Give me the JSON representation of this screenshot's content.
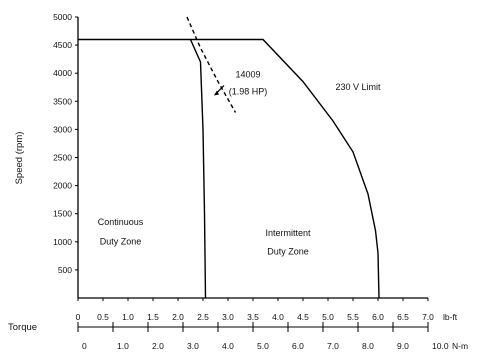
{
  "chart_data": {
    "type": "line",
    "title": "",
    "ylabel": "Speed (rpm)",
    "xlabel": "Torque",
    "ylim": [
      0,
      5000
    ],
    "y_ticks": [
      "5000",
      "4500",
      "4000",
      "3500",
      "3000",
      "2500",
      "2000",
      "1500",
      "1000",
      "500"
    ],
    "x_axis_lbft": {
      "unit": "lb-ft",
      "xlim": [
        0,
        7.0
      ],
      "ticks": [
        "0",
        "0.5",
        "1.0",
        "1.5",
        "2.0",
        "2.5",
        "3.0",
        "3.5",
        "4.0",
        "4.5",
        "5.0",
        "5.5",
        "6.0",
        "6.5",
        "7.0"
      ]
    },
    "x_axis_nm": {
      "unit": "N-m",
      "xlim": [
        0,
        10.0
      ],
      "ticks": [
        "0",
        "1.0",
        "2.0",
        "3.0",
        "4.0",
        "5.0",
        "6.0",
        "7.0",
        "8.0",
        "9.0",
        "10.0"
      ]
    },
    "series": [
      {
        "name": "230 V Limit",
        "style": "solid",
        "points": [
          [
            0,
            4600
          ],
          [
            3.7,
            4600
          ],
          [
            4.5,
            3850
          ],
          [
            5.1,
            3150
          ],
          [
            5.5,
            2600
          ],
          [
            5.8,
            1850
          ],
          [
            5.95,
            1200
          ],
          [
            6.0,
            800
          ],
          [
            6.02,
            0
          ]
        ]
      },
      {
        "name": "",
        "style": "solid",
        "points": [
          [
            2.25,
            4600
          ],
          [
            2.45,
            4200
          ],
          [
            2.5,
            3000
          ],
          [
            2.53,
            1500
          ],
          [
            2.55,
            0
          ]
        ]
      },
      {
        "name": "",
        "style": "dashed",
        "points": [
          [
            2.18,
            5000
          ],
          [
            2.45,
            4450
          ],
          [
            2.8,
            3850
          ],
          [
            3.15,
            3300
          ]
        ]
      }
    ],
    "annotations": [
      {
        "text": "230 V Limit",
        "x": 5.6,
        "y": 3700
      },
      {
        "text": "14009",
        "x": 3.4,
        "y": 3920
      },
      {
        "text": "(1.98 HP)",
        "x": 3.4,
        "y": 3620
      },
      {
        "text": "Continuous",
        "x": 0.85,
        "y": 1300
      },
      {
        "text": "Duty Zone",
        "x": 0.85,
        "y": 950
      },
      {
        "text": "Intermittent",
        "x": 4.2,
        "y": 1100
      },
      {
        "text": "Duty Zone",
        "x": 4.2,
        "y": 770
      }
    ],
    "grid": false,
    "legend": "none"
  }
}
